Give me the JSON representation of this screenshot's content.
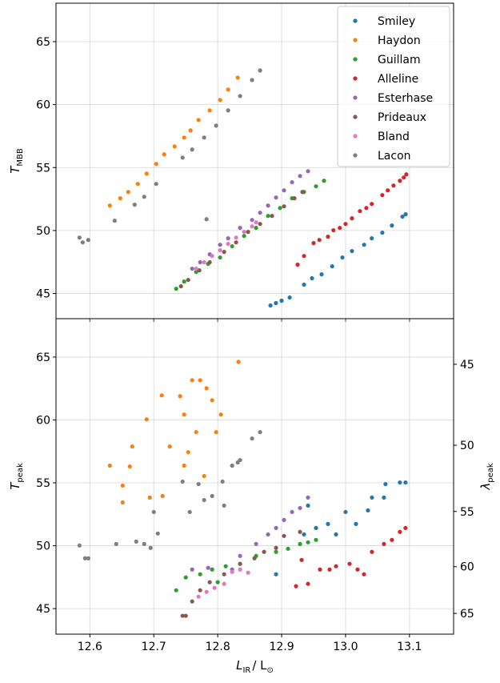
{
  "chart_data": [
    {
      "type": "scatter",
      "ylabel": "T",
      "ylabel_sub": "MBB",
      "xlim": [
        12.547,
        13.169
      ],
      "xticks": [
        12.6,
        12.7,
        12.8,
        12.9,
        13.0,
        13.1
      ],
      "ylim": [
        43.0,
        68.05
      ],
      "yticks": [
        45,
        50,
        55,
        60,
        65
      ],
      "grid": true,
      "legend": "upper right",
      "series": [
        {
          "name": "Smiley",
          "color": "#1f77b4",
          "x": [
            12.8825,
            12.891,
            12.9,
            12.9125,
            12.935,
            12.9475,
            12.9625,
            12.979,
            12.995,
            13.01,
            13.029,
            13.041,
            13.0575,
            13.0725,
            13.089,
            13.094
          ],
          "values": [
            44.05,
            44.24,
            44.43,
            44.68,
            45.7,
            46.21,
            46.52,
            47.16,
            47.86,
            48.37,
            48.87,
            49.38,
            49.83,
            50.4,
            51.1,
            51.29
          ]
        },
        {
          "name": "Haydon",
          "color": "#ff7f0e",
          "x": [
            12.63125,
            12.6475,
            12.66,
            12.675,
            12.68875,
            12.70375,
            12.71625,
            12.7325,
            12.7475,
            12.7575,
            12.77,
            12.7875,
            12.80375,
            12.81625,
            12.83125
          ],
          "values": [
            51.98,
            52.56,
            53.06,
            53.7,
            54.52,
            55.29,
            56.05,
            56.68,
            57.38,
            57.95,
            58.78,
            59.54,
            60.37,
            61.19,
            62.14
          ]
        },
        {
          "name": "Guillam",
          "color": "#2ca02c",
          "x": [
            12.735,
            12.7475,
            12.76625,
            12.785,
            12.80375,
            12.8225,
            12.84125,
            12.86,
            12.87875,
            12.8975,
            12.91625,
            12.935,
            12.95375,
            12.96625
          ],
          "values": [
            45.38,
            45.95,
            46.71,
            47.35,
            47.86,
            48.75,
            49.57,
            50.21,
            51.16,
            51.79,
            52.56,
            53.06,
            53.51,
            53.95
          ]
        },
        {
          "name": "Alleline",
          "color": "#d62728",
          "x": [
            12.925,
            12.935,
            12.95,
            12.959,
            12.9725,
            12.981,
            12.991,
            13.0,
            13.01,
            13.0225,
            13.0325,
            13.041,
            13.0575,
            13.066,
            13.075,
            13.085,
            13.091,
            13.095
          ],
          "values": [
            47.29,
            47.98,
            49.0,
            49.25,
            49.51,
            50.02,
            50.21,
            50.52,
            50.97,
            51.54,
            51.79,
            52.11,
            52.81,
            53.19,
            53.57,
            53.95,
            54.21,
            54.46
          ]
        },
        {
          "name": "Esterhase",
          "color": "#9467bd",
          "x": [
            12.76,
            12.7725,
            12.7875,
            12.80375,
            12.81625,
            12.835,
            12.85375,
            12.86625,
            12.87875,
            12.89125,
            12.90375,
            12.91625,
            12.92875,
            12.94125
          ],
          "values": [
            46.97,
            47.48,
            48.11,
            48.87,
            49.38,
            50.21,
            50.84,
            51.41,
            51.98,
            52.62,
            53.19,
            53.83,
            54.33,
            54.71
          ]
        },
        {
          "name": "Prideaux",
          "color": "#8c564b",
          "x": [
            12.7425,
            12.75375,
            12.77125,
            12.7875,
            12.81,
            12.82875,
            12.8475,
            12.86625,
            12.885,
            12.90375,
            12.92,
            12.9325
          ],
          "values": [
            45.57,
            46.08,
            46.84,
            47.48,
            48.3,
            49.06,
            49.89,
            50.52,
            51.16,
            51.92,
            52.56,
            53.06
          ]
        },
        {
          "name": "Bland",
          "color": "#e377c2",
          "x": [
            12.76625,
            12.77875,
            12.79125,
            12.80375,
            12.81625,
            12.82875,
            12.84125,
            12.85375,
            12.86
          ],
          "values": [
            46.97,
            47.48,
            47.98,
            48.43,
            48.94,
            49.44,
            49.89,
            50.33,
            50.65
          ]
        },
        {
          "name": "Lacon",
          "color": "#7f7f7f",
          "x": [
            12.58375,
            12.58875,
            12.5975,
            12.63875,
            12.67,
            12.685,
            12.70375,
            12.745,
            12.76,
            12.77875,
            12.7975,
            12.81625,
            12.835,
            12.85375,
            12.86625,
            12.7825
          ],
          "values": [
            49.44,
            49.06,
            49.25,
            50.78,
            52.05,
            52.68,
            53.7,
            55.79,
            56.43,
            57.38,
            58.33,
            59.54,
            60.68,
            61.95,
            62.71,
            50.9
          ]
        }
      ]
    },
    {
      "type": "scatter",
      "ylabel": "T",
      "ylabel_sub": "peak",
      "xlabel": [
        {
          "text": "L",
          "sub": "IR"
        },
        {
          "text": "/ L",
          "sub": "⊙"
        }
      ],
      "xlim": [
        12.547,
        13.169
      ],
      "xticks": [
        12.6,
        12.7,
        12.8,
        12.9,
        {
          "value": 13.0,
          "label": "13.0"
        },
        13.1
      ],
      "ylim": [
        42.97,
        68.05
      ],
      "yticks": [
        45,
        50,
        55,
        60,
        65
      ],
      "grid": true,
      "y2label": "λ",
      "y2label_sub": "peak",
      "y2scale": "reciprocal",
      "y2lim": [
        42.6,
        67.5
      ],
      "y2ticks": [
        45,
        50,
        55,
        60,
        65
      ],
      "series": [
        {
          "color": "#1f77b4",
          "x": [
            12.89125,
            12.935,
            12.94125,
            12.95375,
            12.9725,
            13.0,
            13.01625,
            13.035,
            13.04125,
            13.06,
            13.0625,
            13.085,
            13.09375,
            12.985
          ],
          "values": [
            47.73,
            50.9,
            53.19,
            51.41,
            51.73,
            52.68,
            51.73,
            52.81,
            53.83,
            53.83,
            54.9,
            55.03,
            55.03,
            50.9
          ]
        },
        {
          "color": "#ff7f0e",
          "x": [
            12.63125,
            12.65125,
            12.65125,
            12.66625,
            12.6625,
            12.68875,
            12.69375,
            12.7125,
            12.725,
            12.71375,
            12.74125,
            12.7475,
            12.75375,
            12.76,
            12.7725,
            12.76625,
            12.7825,
            12.79125,
            12.7975,
            12.805,
            12.8325,
            12.77875,
            12.7475
          ],
          "values": [
            56.37,
            54.78,
            53.44,
            57.89,
            56.3,
            60.05,
            53.83,
            61.95,
            57.89,
            53.95,
            61.89,
            60.43,
            57.44,
            63.16,
            63.16,
            59.03,
            62.52,
            61.57,
            59.03,
            60.43,
            64.62,
            55.54,
            56.37
          ]
        },
        {
          "color": "#2ca02c",
          "x": [
            12.735,
            12.75,
            12.7725,
            12.79125,
            12.8125,
            12.835,
            12.86,
            12.89125,
            12.91,
            12.92875,
            12.94125,
            12.95375,
            12.8
          ],
          "values": [
            46.46,
            47.48,
            47.73,
            48.11,
            48.37,
            48.56,
            49.19,
            49.51,
            49.76,
            50.14,
            50.27,
            50.46,
            47.1
          ]
        },
        {
          "color": "#d62728",
          "x": [
            12.9225,
            12.94125,
            12.96,
            12.975,
            12.985,
            13.00625,
            13.01875,
            13.02875,
            13.04125,
            13.06,
            13.0725,
            13.085,
            13.09375,
            12.93125
          ],
          "values": [
            46.78,
            46.97,
            48.11,
            48.11,
            48.37,
            48.56,
            48.11,
            47.73,
            49.51,
            50.14,
            50.46,
            51.1,
            51.41,
            48.87
          ]
        },
        {
          "color": "#9467bd",
          "x": [
            12.76,
            12.785,
            12.835,
            12.86,
            12.87875,
            12.89125,
            12.90375,
            12.91625,
            12.92875,
            12.94125,
            12.8225
          ],
          "values": [
            48.11,
            48.24,
            49.19,
            50.14,
            50.9,
            51.41,
            52.05,
            52.68,
            53.0,
            53.83,
            48.11
          ]
        },
        {
          "color": "#8c564b",
          "x": [
            12.745,
            12.76,
            12.7725,
            12.7875,
            12.81,
            12.835,
            12.8575,
            12.8725,
            12.89125,
            12.90375,
            12.92875,
            12.75
          ],
          "values": [
            44.43,
            45.57,
            46.46,
            47.1,
            47.73,
            48.56,
            49.0,
            49.51,
            49.83,
            50.78,
            51.1,
            44.43
          ]
        },
        {
          "color": "#e377c2",
          "x": [
            12.77,
            12.7825,
            12.795,
            12.81,
            12.8225,
            12.835,
            12.8475
          ],
          "values": [
            45.95,
            46.33,
            46.65,
            46.97,
            47.92,
            48.11,
            47.86
          ]
        },
        {
          "color": "#7f7f7f",
          "x": [
            12.58375,
            12.5925,
            12.5975,
            12.64125,
            12.6725,
            12.685,
            12.695,
            12.7,
            12.70625,
            12.745,
            12.75625,
            12.77875,
            12.79125,
            12.8075,
            12.8225,
            12.835,
            12.85375,
            12.86625,
            12.77,
            12.81,
            12.83125
          ],
          "values": [
            50.02,
            49.0,
            49.0,
            50.14,
            50.33,
            50.14,
            49.83,
            52.68,
            50.97,
            55.1,
            52.68,
            53.63,
            53.95,
            55.1,
            56.37,
            56.81,
            58.52,
            59.03,
            54.9,
            53.19,
            56.62
          ]
        }
      ]
    }
  ]
}
